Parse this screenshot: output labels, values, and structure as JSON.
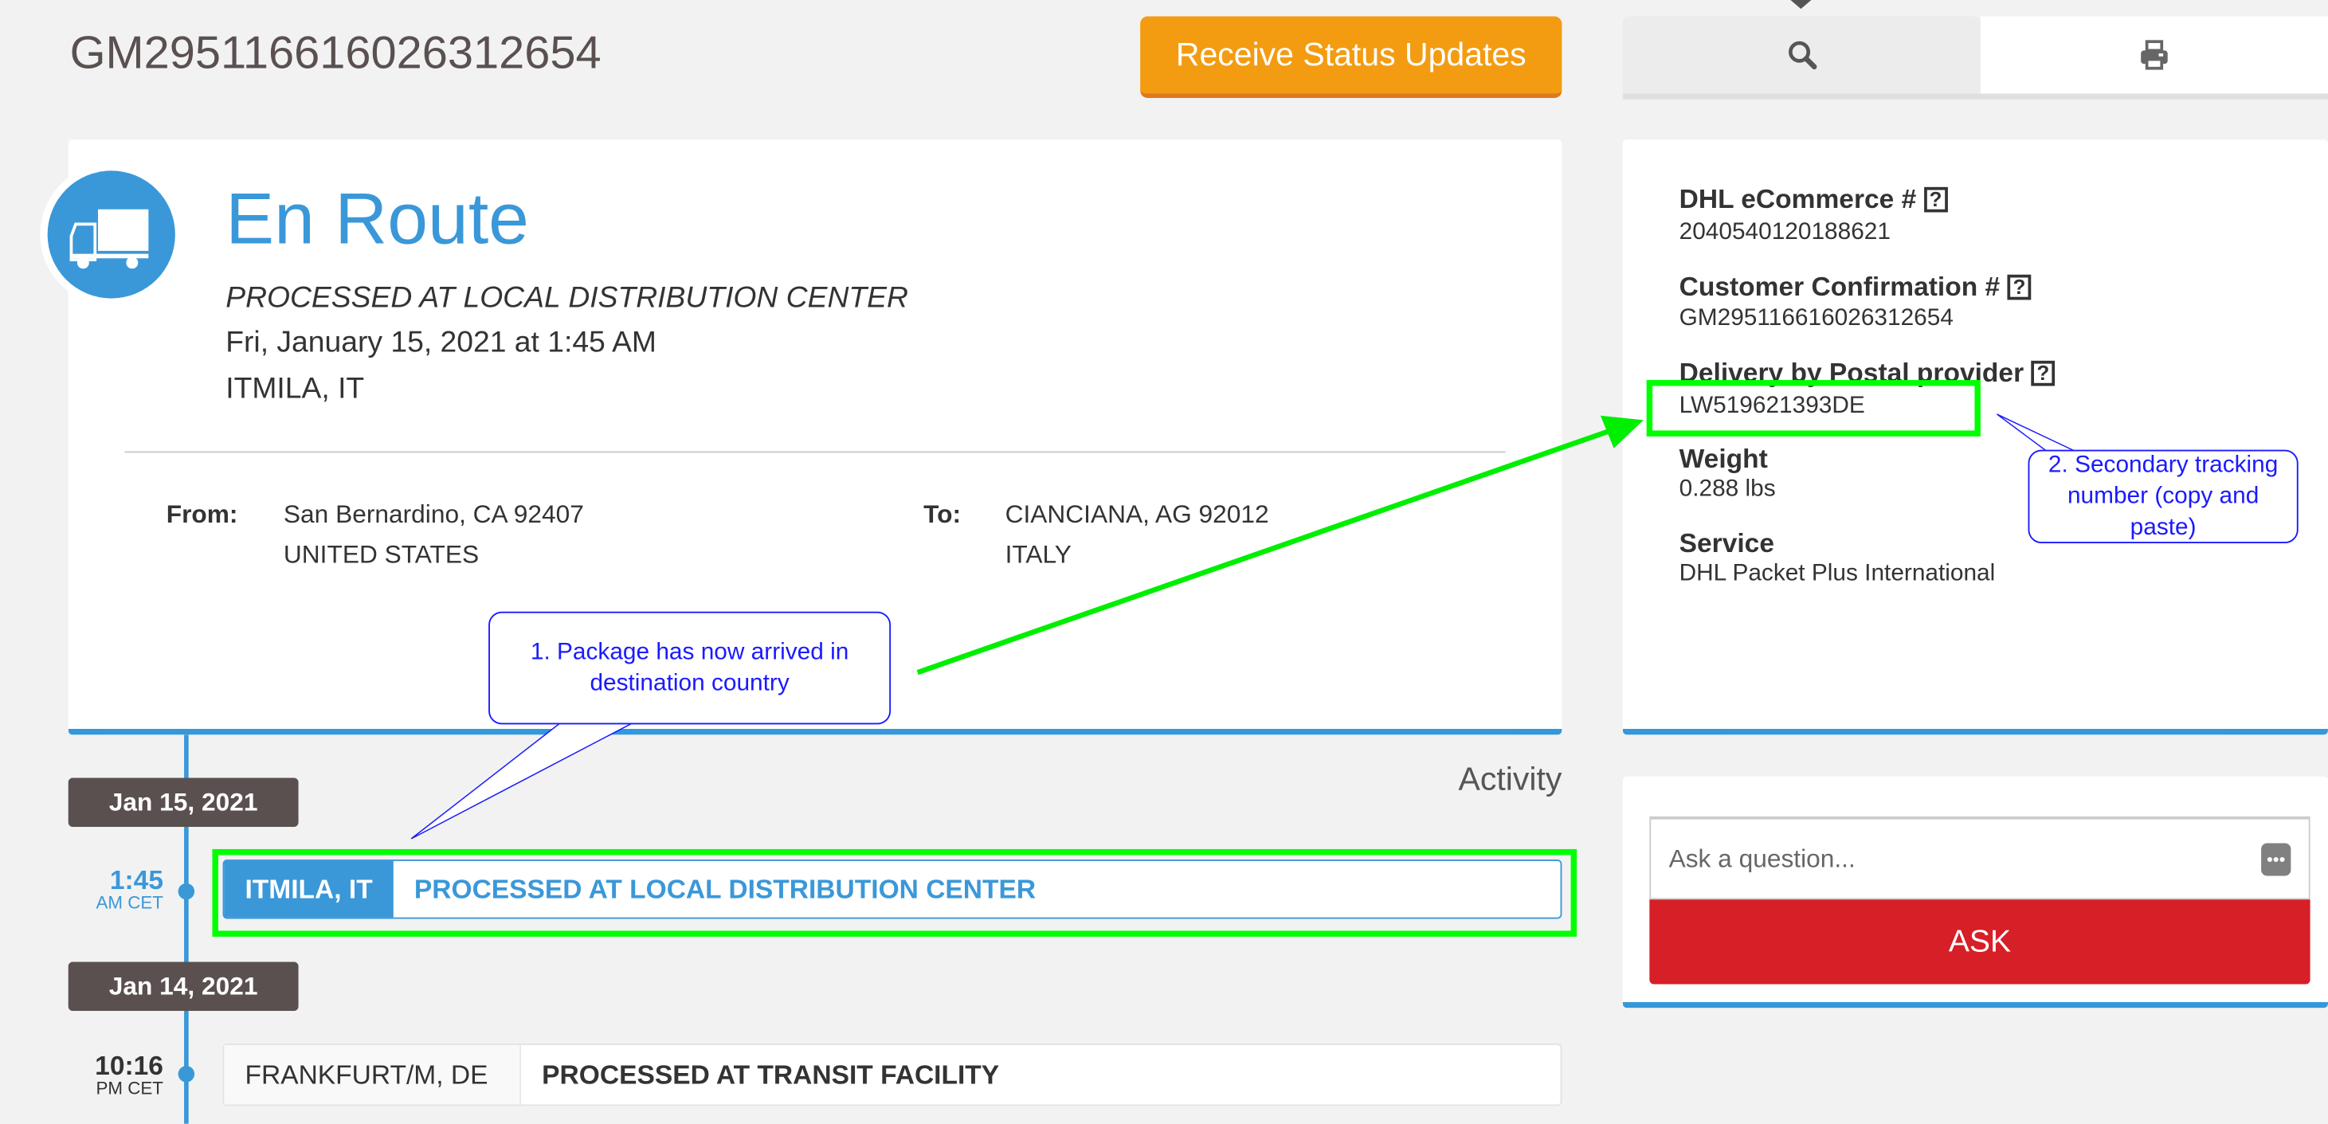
{
  "header": {
    "tracking_number": "GM295116616026312654",
    "receive_updates_label": "Receive Status Updates"
  },
  "status": {
    "title": "En Route",
    "detail": "PROCESSED AT LOCAL DISTRIBUTION CENTER",
    "datetime": "Fri, January 15, 2021 at 1:45 AM",
    "location": "ITMILA, IT",
    "icon": "truck-icon"
  },
  "route": {
    "from_label": "From:",
    "from_line1": "San Bernardino, CA 92407",
    "from_line2": "UNITED STATES",
    "to_label": "To:",
    "to_line1": "CIANCIANA, AG 92012",
    "to_line2": "ITALY"
  },
  "activity": {
    "heading": "Activity",
    "groups": [
      {
        "date": "Jan 15, 2021",
        "events": [
          {
            "time": "1:45",
            "tz": "AM CET",
            "location": "ITMILA, IT",
            "description": "PROCESSED AT LOCAL DISTRIBUTION CENTER"
          }
        ]
      },
      {
        "date": "Jan 14, 2021",
        "events": [
          {
            "time": "10:16",
            "tz": "PM CET",
            "location": "FRANKFURT/M, DE",
            "description": "PROCESSED AT TRANSIT FACILITY"
          }
        ]
      }
    ]
  },
  "tabs": [
    {
      "icon": "search-icon",
      "active": true
    },
    {
      "icon": "printer-icon",
      "active": false
    }
  ],
  "details": [
    {
      "label": "DHL eCommerce #",
      "value": "2040540120188621",
      "help": "?"
    },
    {
      "label": "Customer Confirmation #",
      "value": "GM295116616026312654",
      "help": "?"
    },
    {
      "label": "Delivery by Postal provider",
      "value": "LW519621393DE",
      "help": "?"
    },
    {
      "label": "Weight",
      "value": "0.288 lbs"
    },
    {
      "label": "Service",
      "value": "DHL Packet Plus International"
    }
  ],
  "ask": {
    "placeholder": "Ask a question...",
    "button_label": "ASK"
  },
  "annotations": {
    "note1": "1. Package has now arrived in destination country",
    "note2": "2. Secondary tracking number (copy and paste)",
    "highlight_color": "#00ff00",
    "callout_color": "#1a1aff"
  },
  "colors": {
    "brand_blue": "#3a98d9",
    "orange": "#f39c12",
    "ask_red": "#d61f26",
    "pill": "#5a5050"
  }
}
